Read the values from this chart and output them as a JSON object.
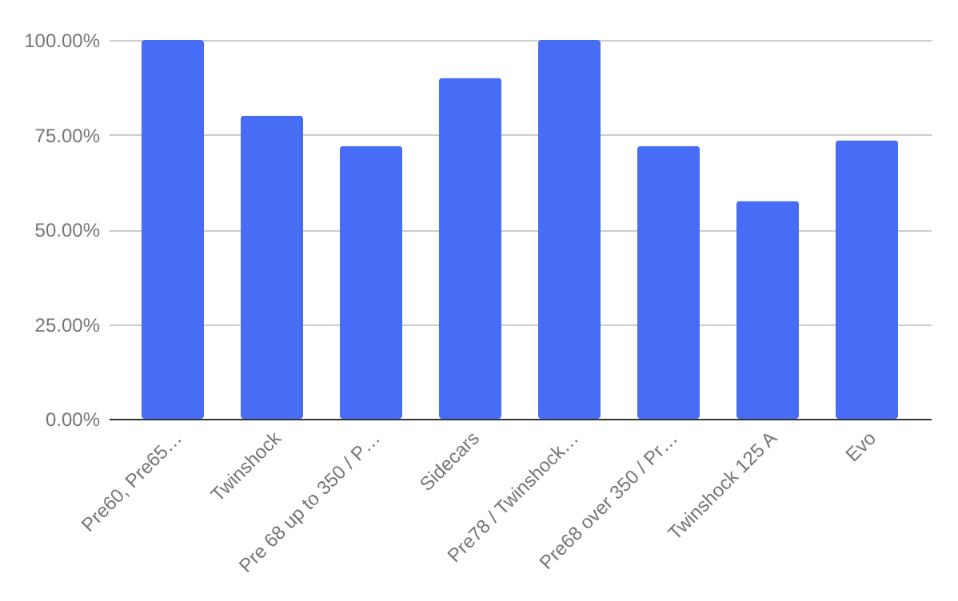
{
  "chart_data": {
    "type": "bar",
    "categories": [
      "Pre60, Pre65…",
      "Twinshock",
      "Pre 68 up to 350 / P…",
      "Sidecars",
      "Pre78 / Twinshock…",
      "Pre68 over 350 / Pr…",
      "Twinshock 125 A",
      "Evo"
    ],
    "values": [
      100,
      80,
      72,
      90,
      100,
      72,
      57.5,
      73.5
    ],
    "color": "#476cf6",
    "ylim": [
      0,
      100
    ],
    "yticks": [
      {
        "value": 0,
        "label": "0.00%"
      },
      {
        "value": 25,
        "label": "25.00%"
      },
      {
        "value": 50,
        "label": "50.00%"
      },
      {
        "value": 75,
        "label": "75.00%"
      },
      {
        "value": 100,
        "label": "100.00%"
      }
    ],
    "grid": "y"
  }
}
